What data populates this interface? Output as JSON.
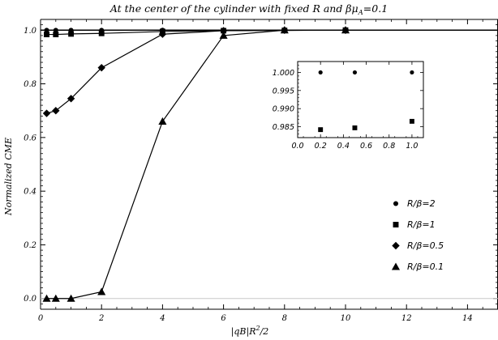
{
  "chart_data": [
    {
      "type": "line",
      "title_main": "At the center of the cylinder with fixed R and βμ",
      "title_sub": "A",
      "title_tail": "=0.1",
      "xlabel_parts": [
        "|qB|R",
        "2",
        "/2"
      ],
      "ylabel": "Normalized CME",
      "xlim": [
        0,
        15
      ],
      "ylim": [
        -0.04,
        1.04
      ],
      "xticks": [
        0,
        2,
        4,
        6,
        8,
        10,
        12,
        14
      ],
      "xtick_labels": [
        "0",
        "2",
        "4",
        "6",
        "8",
        "10",
        "12",
        "14"
      ],
      "yticks": [
        0.0,
        0.2,
        0.4,
        0.6,
        0.8,
        1.0
      ],
      "ytick_labels": [
        "0.0",
        "0.2",
        "0.4",
        "0.6",
        "0.8",
        "1.0"
      ],
      "reference_lines": [
        0,
        1
      ],
      "grid": false,
      "legend_position": "bottom-right",
      "series": [
        {
          "name": "R/β=2",
          "marker": "circle",
          "x": [
            0.2,
            0.5,
            1,
            2,
            4,
            6,
            8,
            10
          ],
          "y": [
            0.9995,
            0.9995,
            0.9996,
            0.9997,
            0.9998,
            0.9999,
            1.0,
            1.0
          ]
        },
        {
          "name": "R/β=1",
          "marker": "square",
          "x": [
            0.2,
            0.5,
            1,
            2,
            4,
            6,
            8,
            10
          ],
          "y": [
            0.984,
            0.984,
            0.986,
            0.988,
            0.995,
            0.998,
            0.999,
            1.0
          ]
        },
        {
          "name": "R/β=0.5",
          "marker": "diamond",
          "x": [
            0.2,
            0.5,
            1,
            2,
            4,
            6,
            8,
            10
          ],
          "y": [
            0.69,
            0.7,
            0.745,
            0.86,
            0.985,
            0.998,
            1.0,
            1.0
          ]
        },
        {
          "name": "R/β=0.1",
          "marker": "triangle",
          "x": [
            0.2,
            0.5,
            1,
            2,
            4,
            6,
            8,
            10
          ],
          "y": [
            0.0,
            0.0,
            0.0,
            0.025,
            0.66,
            0.98,
            1.0,
            1.0
          ]
        }
      ]
    },
    {
      "type": "scatter",
      "role": "inset",
      "xlim": [
        0,
        1.1
      ],
      "ylim": [
        0.982,
        1.003
      ],
      "xticks": [
        0.0,
        0.2,
        0.4,
        0.6,
        0.8,
        1.0
      ],
      "xtick_labels": [
        "0.0",
        "0.2",
        "0.4",
        "0.6",
        "0.8",
        "1.0"
      ],
      "yticks": [
        0.985,
        0.99,
        0.995,
        1.0
      ],
      "ytick_labels": [
        "0.985",
        "0.990",
        "0.995",
        "1.000"
      ],
      "series": [
        {
          "name": "R/β=2",
          "marker": "circle",
          "x": [
            0.2,
            0.5,
            1.0
          ],
          "y": [
            1.0,
            1.0,
            1.0
          ]
        },
        {
          "name": "R/β=1",
          "marker": "square",
          "x": [
            0.2,
            0.5,
            1.0
          ],
          "y": [
            0.9842,
            0.9847,
            0.9865
          ]
        }
      ]
    }
  ]
}
